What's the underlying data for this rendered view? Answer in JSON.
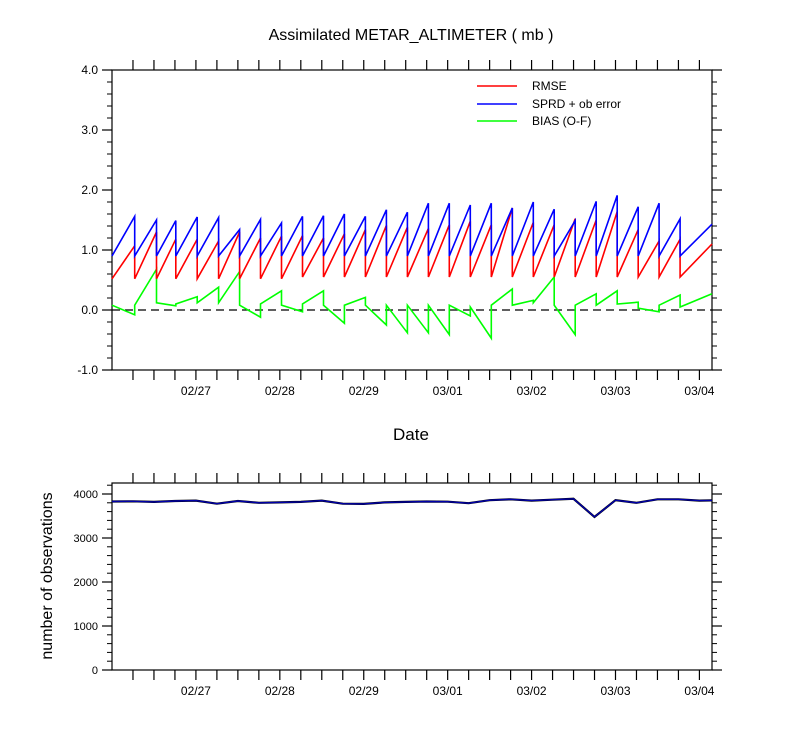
{
  "chart_data": [
    {
      "type": "line",
      "title": "Assimilated METAR_ALTIMETER ( mb )",
      "xlabel": "Date",
      "ylabel": "",
      "ylim": [
        -1.0,
        4.0
      ],
      "y_ticks": [
        -1.0,
        0.0,
        1.0,
        2.0,
        3.0,
        4.0
      ],
      "y_tick_labels": [
        "-1.0",
        "0.0",
        "1.0",
        "2.0",
        "3.0",
        "4.0"
      ],
      "x_ticks": [
        2,
        4,
        6,
        8,
        10,
        12,
        14
      ],
      "x_tick_labels": [
        "02/27",
        "02/28",
        "02/29",
        "03/01",
        "03/02",
        "03/03",
        "03/04"
      ],
      "xlim": [
        0,
        14.3
      ],
      "legend": {
        "position": "top-right",
        "entries": [
          "RMSE",
          "SPRD + ob error",
          "BIAS (O-F)"
        ]
      },
      "zero_line": true,
      "colors": {
        "RMSE": "#ff0000",
        "SPRD": "#0000ff",
        "BIAS": "#00ff00",
        "axis": "#000000"
      },
      "cycles": [
        {
          "x0": 0.0,
          "x1": 0.54,
          "rmse": [
            0.52,
            1.07
          ],
          "sprd": [
            0.9,
            1.56
          ],
          "bias": [
            0.08,
            -0.08
          ]
        },
        {
          "x0": 0.54,
          "x1": 1.06,
          "rmse": [
            0.52,
            1.3
          ],
          "sprd": [
            0.9,
            1.5
          ],
          "bias": [
            0.08,
            0.68
          ]
        },
        {
          "x0": 1.06,
          "x1": 1.52,
          "rmse": [
            0.52,
            1.18
          ],
          "sprd": [
            0.9,
            1.49
          ],
          "bias": [
            0.12,
            0.07
          ]
        },
        {
          "x0": 1.52,
          "x1": 2.03,
          "rmse": [
            0.52,
            1.18
          ],
          "sprd": [
            0.9,
            1.55
          ],
          "bias": [
            0.1,
            0.22
          ]
        },
        {
          "x0": 2.03,
          "x1": 2.54,
          "rmse": [
            0.52,
            1.15
          ],
          "sprd": [
            0.9,
            1.54
          ],
          "bias": [
            0.12,
            0.38
          ]
        },
        {
          "x0": 2.54,
          "x1": 3.04,
          "rmse": [
            0.52,
            1.3
          ],
          "sprd": [
            0.9,
            1.34
          ],
          "bias": [
            0.12,
            0.64
          ]
        },
        {
          "x0": 3.04,
          "x1": 3.54,
          "rmse": [
            0.52,
            1.2
          ],
          "sprd": [
            0.9,
            1.51
          ],
          "bias": [
            0.08,
            -0.12
          ]
        },
        {
          "x0": 3.54,
          "x1": 4.04,
          "rmse": [
            0.52,
            1.23
          ],
          "sprd": [
            0.9,
            1.45
          ],
          "bias": [
            0.1,
            0.32
          ]
        },
        {
          "x0": 4.04,
          "x1": 4.54,
          "rmse": [
            0.52,
            1.24
          ],
          "sprd": [
            0.9,
            1.56
          ],
          "bias": [
            0.08,
            -0.03
          ]
        },
        {
          "x0": 4.54,
          "x1": 5.04,
          "rmse": [
            0.55,
            1.2
          ],
          "sprd": [
            0.9,
            1.57
          ],
          "bias": [
            0.1,
            0.32
          ]
        },
        {
          "x0": 5.04,
          "x1": 5.54,
          "rmse": [
            0.55,
            1.27
          ],
          "sprd": [
            0.9,
            1.6
          ],
          "bias": [
            0.08,
            -0.22
          ]
        },
        {
          "x0": 5.54,
          "x1": 6.04,
          "rmse": [
            0.55,
            1.34
          ],
          "sprd": [
            0.9,
            1.56
          ],
          "bias": [
            0.08,
            0.21
          ]
        },
        {
          "x0": 6.04,
          "x1": 6.54,
          "rmse": [
            0.55,
            1.41
          ],
          "sprd": [
            0.9,
            1.67
          ],
          "bias": [
            0.08,
            -0.25
          ]
        },
        {
          "x0": 6.54,
          "x1": 7.04,
          "rmse": [
            0.55,
            1.38
          ],
          "sprd": [
            0.9,
            1.63
          ],
          "bias": [
            0.08,
            -0.38
          ]
        },
        {
          "x0": 7.04,
          "x1": 7.54,
          "rmse": [
            0.55,
            1.36
          ],
          "sprd": [
            0.9,
            1.78
          ],
          "bias": [
            0.08,
            -0.38
          ]
        },
        {
          "x0": 7.54,
          "x1": 8.04,
          "rmse": [
            0.55,
            1.42
          ],
          "sprd": [
            0.9,
            1.78
          ],
          "bias": [
            0.08,
            -0.41
          ]
        },
        {
          "x0": 8.04,
          "x1": 8.54,
          "rmse": [
            0.55,
            1.48
          ],
          "sprd": [
            0.9,
            1.75
          ],
          "bias": [
            0.08,
            -0.1
          ]
        },
        {
          "x0": 8.54,
          "x1": 9.04,
          "rmse": [
            0.55,
            1.42
          ],
          "sprd": [
            0.9,
            1.78
          ],
          "bias": [
            0.05,
            -0.47
          ]
        },
        {
          "x0": 9.04,
          "x1": 9.54,
          "rmse": [
            0.55,
            1.7
          ],
          "sprd": [
            0.9,
            1.7
          ],
          "bias": [
            0.08,
            0.35
          ]
        },
        {
          "x0": 9.54,
          "x1": 10.04,
          "rmse": [
            0.55,
            1.46
          ],
          "sprd": [
            0.9,
            1.8
          ],
          "bias": [
            0.08,
            0.16
          ]
        },
        {
          "x0": 10.04,
          "x1": 10.54,
          "rmse": [
            0.55,
            1.42
          ],
          "sprd": [
            0.9,
            1.68
          ],
          "bias": [
            0.12,
            0.55
          ]
        },
        {
          "x0": 10.54,
          "x1": 11.04,
          "rmse": [
            0.55,
            1.52
          ],
          "sprd": [
            0.9,
            1.49
          ],
          "bias": [
            0.08,
            -0.41
          ]
        },
        {
          "x0": 11.04,
          "x1": 11.54,
          "rmse": [
            0.55,
            1.5
          ],
          "sprd": [
            0.9,
            1.81
          ],
          "bias": [
            0.08,
            0.27
          ]
        },
        {
          "x0": 11.54,
          "x1": 12.04,
          "rmse": [
            0.55,
            1.64
          ],
          "sprd": [
            0.9,
            1.91
          ],
          "bias": [
            0.08,
            0.32
          ]
        },
        {
          "x0": 12.04,
          "x1": 12.54,
          "rmse": [
            0.55,
            1.34
          ],
          "sprd": [
            0.9,
            1.72
          ],
          "bias": [
            0.1,
            0.13
          ]
        },
        {
          "x0": 12.54,
          "x1": 13.04,
          "rmse": [
            0.55,
            1.15
          ],
          "sprd": [
            0.9,
            1.78
          ],
          "bias": [
            0.03,
            -0.03
          ]
        },
        {
          "x0": 13.04,
          "x1": 13.54,
          "rmse": [
            0.55,
            1.18
          ],
          "sprd": [
            0.9,
            1.52
          ],
          "bias": [
            0.08,
            0.25
          ]
        },
        {
          "x0": 13.54,
          "x1": 14.3,
          "rmse": [
            0.55,
            1.1
          ],
          "sprd": [
            0.9,
            1.43
          ],
          "bias": [
            0.05,
            0.27
          ]
        }
      ]
    },
    {
      "type": "line",
      "title": "",
      "xlabel": "",
      "ylabel": "number of observations",
      "ylim": [
        0,
        4250
      ],
      "y_ticks": [
        0,
        1000,
        2000,
        3000,
        4000
      ],
      "y_tick_labels": [
        "0",
        "1000",
        "2000",
        "3000",
        "4000"
      ],
      "x_ticks": [
        2,
        4,
        6,
        8,
        10,
        12,
        14
      ],
      "x_tick_labels": [
        "02/27",
        "02/28",
        "02/29",
        "03/01",
        "03/02",
        "03/03",
        "03/04"
      ],
      "xlim": [
        0,
        14.3
      ],
      "series": [
        {
          "name": "observations",
          "color": "#0000aa",
          "x": [
            0,
            0.5,
            1,
            1.5,
            2,
            2.5,
            3,
            3.5,
            4,
            4.5,
            5,
            5.5,
            6,
            6.5,
            7,
            7.5,
            8,
            8.5,
            9,
            9.5,
            10,
            10.5,
            11,
            11.5,
            12,
            12.5,
            13,
            13.5,
            14,
            14.3
          ],
          "values": [
            3830,
            3835,
            3820,
            3840,
            3850,
            3780,
            3840,
            3800,
            3810,
            3820,
            3850,
            3780,
            3775,
            3810,
            3820,
            3830,
            3825,
            3790,
            3860,
            3880,
            3850,
            3870,
            3890,
            3480,
            3860,
            3800,
            3880,
            3880,
            3850,
            3855
          ]
        }
      ]
    }
  ]
}
